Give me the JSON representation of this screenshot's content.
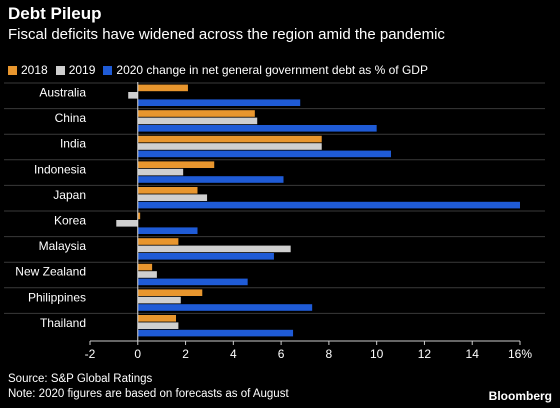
{
  "header": {
    "title": "Debt Pileup",
    "subtitle": "Fiscal deficits have widened across the region amid the pandemic"
  },
  "footer": {
    "source": "Source: S&P Global Ratings",
    "note": "Note: 2020 figures are based on forecasts as of August",
    "brand": "Bloomberg"
  },
  "colors": {
    "s2018": "#e8962e",
    "s2019": "#cfcfcf",
    "s2020": "#1f5bd6",
    "axis": "#cccccc",
    "bg": "#000000"
  },
  "chart_data": {
    "type": "bar",
    "orientation": "horizontal",
    "categories": [
      "Australia",
      "China",
      "India",
      "Indonesia",
      "Japan",
      "Korea",
      "Malaysia",
      "New Zealand",
      "Philippines",
      "Thailand"
    ],
    "series": [
      {
        "name": "2018",
        "values": [
          2.1,
          4.9,
          7.7,
          3.2,
          2.5,
          0.1,
          1.7,
          0.6,
          2.7,
          1.6
        ]
      },
      {
        "name": "2019",
        "values": [
          -0.4,
          5.0,
          7.7,
          1.9,
          2.9,
          -0.9,
          6.4,
          0.8,
          1.8,
          1.7
        ]
      },
      {
        "name": "2020 change in net general government debt as % of GDP",
        "values": [
          6.8,
          10.0,
          10.6,
          6.1,
          16.0,
          2.5,
          5.7,
          4.6,
          7.3,
          6.5
        ]
      }
    ],
    "xlim": [
      -2,
      16
    ],
    "xticks": [
      -2,
      0,
      2,
      4,
      6,
      8,
      10,
      12,
      14,
      16
    ],
    "xtick_labels": [
      "-2",
      "0",
      "2",
      "4",
      "6",
      "8",
      "10",
      "12",
      "14",
      "16%"
    ],
    "grid": false,
    "legend": "top-left"
  }
}
